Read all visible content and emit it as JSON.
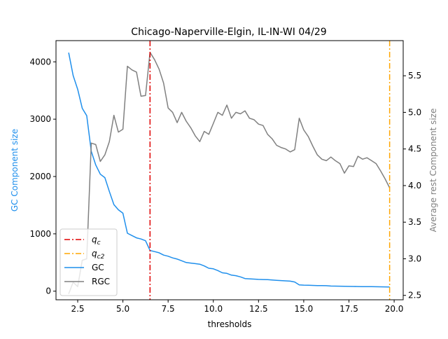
{
  "chart_data": {
    "type": "line",
    "title": "Chicago-Naperville-Elgin, IL-IN-WI 04/29",
    "xlabel": "thresholds",
    "ylabel_left": "GC Component size",
    "ylabel_right": "Average rest Component size",
    "xlim": [
      1.3,
      20.5
    ],
    "ylim_left": [
      -150,
      4370
    ],
    "ylim_right": [
      2.44,
      5.98
    ],
    "x_ticks": [
      2.5,
      5.0,
      7.5,
      10.0,
      12.5,
      15.0,
      17.5,
      20.0
    ],
    "x_tick_labels": [
      "2.5",
      "5.0",
      "7.5",
      "10.0",
      "12.5",
      "15.0",
      "17.5",
      "20.0"
    ],
    "y_left_ticks": [
      0,
      1000,
      2000,
      3000,
      4000
    ],
    "y_left_tick_labels": [
      "0",
      "1000",
      "2000",
      "3000",
      "4000"
    ],
    "y_right_ticks": [
      2.5,
      3.0,
      3.5,
      4.0,
      4.5,
      5.0,
      5.5
    ],
    "y_right_tick_labels": [
      "2.5",
      "3.0",
      "3.5",
      "4.0",
      "4.5",
      "5.0",
      "5.5"
    ],
    "grid": false,
    "legend_position": "lower-left",
    "colors": {
      "gc": "#1f8fec",
      "rgc": "#808080",
      "qc": "#e00000",
      "qc2": "#ffa500",
      "ylabel_left": "#1f8fec",
      "ylabel_right": "#808080"
    },
    "vlines": [
      {
        "name": "q_c",
        "label_main": "q",
        "label_sub": "c",
        "x": 6.5,
        "color": "#e00000",
        "axis": "left"
      },
      {
        "name": "q_c2",
        "label_main": "q",
        "label_sub": "c2",
        "x": 19.75,
        "color": "#ffa500",
        "axis": "left"
      }
    ],
    "x": [
      2.0,
      2.25,
      2.5,
      2.75,
      3.0,
      3.25,
      3.5,
      3.75,
      4.0,
      4.25,
      4.5,
      4.75,
      5.0,
      5.25,
      5.5,
      5.75,
      6.0,
      6.25,
      6.5,
      6.75,
      7.0,
      7.25,
      7.5,
      7.75,
      8.0,
      8.25,
      8.5,
      8.75,
      9.0,
      9.25,
      9.5,
      9.75,
      10.0,
      10.25,
      10.5,
      10.75,
      11.0,
      11.25,
      11.5,
      11.75,
      12.0,
      12.25,
      12.5,
      12.75,
      13.0,
      13.25,
      13.5,
      13.75,
      14.0,
      14.25,
      14.5,
      14.75,
      15.0,
      15.25,
      15.5,
      15.75,
      16.0,
      16.25,
      16.5,
      16.75,
      17.0,
      17.25,
      17.5,
      17.75,
      18.0,
      18.25,
      18.5,
      18.75,
      19.0,
      19.25,
      19.5,
      19.75
    ],
    "series": [
      {
        "name": "GC",
        "axis": "left",
        "color": "#1f8fec",
        "values": [
          4160,
          3760,
          3520,
          3190,
          3060,
          2440,
          2200,
          2040,
          1980,
          1740,
          1510,
          1420,
          1360,
          1010,
          970,
          930,
          910,
          880,
          710,
          690,
          670,
          630,
          610,
          580,
          560,
          530,
          500,
          490,
          480,
          470,
          440,
          400,
          390,
          360,
          320,
          310,
          280,
          270,
          250,
          220,
          215,
          210,
          205,
          203,
          200,
          195,
          190,
          185,
          180,
          175,
          160,
          110,
          105,
          103,
          100,
          98,
          97,
          95,
          90,
          88,
          87,
          85,
          83,
          82,
          81,
          80,
          79,
          78,
          77,
          76,
          75,
          73
        ]
      },
      {
        "name": "RGC",
        "axis": "right",
        "color": "#808080",
        "values": [
          2.52,
          2.68,
          2.62,
          2.98,
          3.0,
          4.58,
          4.56,
          4.33,
          4.42,
          4.6,
          4.96,
          4.73,
          4.77,
          5.63,
          5.58,
          5.55,
          5.22,
          5.23,
          5.82,
          5.72,
          5.59,
          5.4,
          5.06,
          5.0,
          4.86,
          5.0,
          4.88,
          4.79,
          4.68,
          4.6,
          4.74,
          4.7,
          4.85,
          5.0,
          4.96,
          5.1,
          4.92,
          5.0,
          4.98,
          5.02,
          4.92,
          4.9,
          4.84,
          4.82,
          4.7,
          4.64,
          4.55,
          4.52,
          4.5,
          4.46,
          4.49,
          4.92,
          4.76,
          4.67,
          4.54,
          4.42,
          4.36,
          4.34,
          4.39,
          4.34,
          4.3,
          4.17,
          4.27,
          4.26,
          4.4,
          4.36,
          4.38,
          4.34,
          4.3,
          4.2,
          4.09,
          3.97
        ]
      }
    ]
  }
}
